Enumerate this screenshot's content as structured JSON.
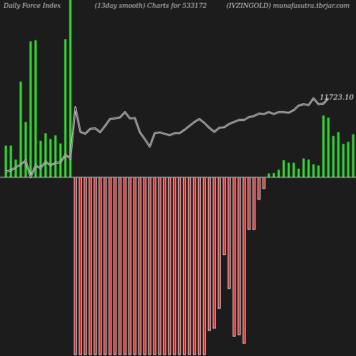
{
  "header": {
    "left": "Daily Force  Index",
    "center": "(13day smooth) Charts for 533172",
    "right": "(IVZINGOLD) munafasutra.tbrjar.com"
  },
  "chart_data": {
    "type": "bar",
    "title": "Daily Force  Index (13day smooth) Charts for 533172",
    "symbol": "IVZINGOLD",
    "source": "munafasutra.tbrjar.com",
    "bars_y_range": [
      -33,
      33
    ],
    "bars": [
      5.9,
      5.9,
      3.3,
      17.8,
      10.3,
      25.3,
      25.5,
      6.8,
      8.2,
      7.1,
      7.8,
      6.3,
      25.7,
      33,
      -33,
      -33,
      -33,
      -33,
      -33,
      -33,
      -33,
      -33,
      -33,
      -33,
      -33,
      -33,
      -33,
      -33,
      -33,
      -33,
      -33,
      -33,
      -33,
      -33,
      -33,
      -33,
      -33,
      -33,
      -33,
      -33,
      -33,
      -28.5,
      -28.1,
      -24.4,
      -14.4,
      -20.7,
      -29.6,
      -29.3,
      -30.9,
      -9.7,
      -9.7,
      -4.1,
      -2.1,
      0.7,
      0.8,
      1.4,
      3.2,
      2.7,
      2.7,
      1.6,
      3.5,
      3.3,
      2.4,
      2.2,
      11.5,
      11.1,
      7.7,
      8.4,
      6.2,
      6.6,
      8
    ],
    "price_series": {
      "last_value": 11723.1,
      "last_label": "11723.10",
      "values": [
        11330,
        11335,
        11350,
        11365,
        11385,
        11300,
        11360,
        11345,
        11380,
        11360,
        11373,
        11375,
        11415,
        11395,
        11655,
        11530,
        11520,
        11545,
        11548,
        11528,
        11560,
        11595,
        11598,
        11603,
        11630,
        11598,
        11600,
        11528,
        11493,
        11455,
        11523,
        11527,
        11520,
        11513,
        11523,
        11523,
        11540,
        11560,
        11580,
        11595,
        11575,
        11550,
        11530,
        11550,
        11553,
        11570,
        11580,
        11590,
        11590,
        11605,
        11610,
        11622,
        11620,
        11630,
        11620,
        11630,
        11630,
        11627,
        11640,
        11663,
        11670,
        11665,
        11700,
        11670,
        11673,
        11700
      ]
    }
  }
}
